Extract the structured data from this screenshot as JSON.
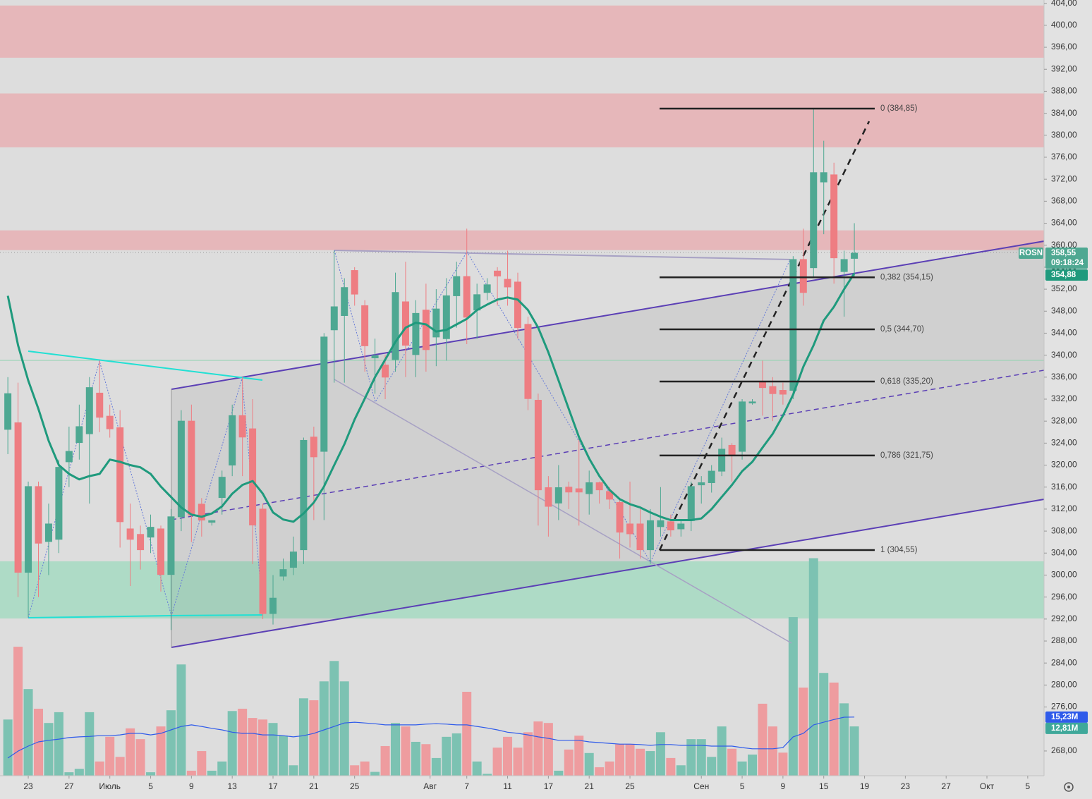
{
  "chart_data": {
    "type": "candlestick",
    "symbol": "ROSN",
    "countdown": "09:18:24",
    "xlim": [
      -0.77,
      101.6
    ],
    "ylim": [
      263.5,
      404.6
    ],
    "xticks": [
      {
        "value": 2,
        "label": "23"
      },
      {
        "value": 6,
        "label": "27"
      },
      {
        "value": 10,
        "label": "Июль"
      },
      {
        "value": 14,
        "label": "5"
      },
      {
        "value": 18,
        "label": "9"
      },
      {
        "value": 22,
        "label": "13"
      },
      {
        "value": 26,
        "label": "17"
      },
      {
        "value": 30,
        "label": "21"
      },
      {
        "value": 34,
        "label": "25"
      },
      {
        "value": 41.4,
        "label": "Авг"
      },
      {
        "value": 45,
        "label": "7"
      },
      {
        "value": 49,
        "label": "11"
      },
      {
        "value": 53,
        "label": "17"
      },
      {
        "value": 57,
        "label": "21"
      },
      {
        "value": 61,
        "label": "25"
      },
      {
        "value": 68,
        "label": "Сен"
      },
      {
        "value": 72,
        "label": "5"
      },
      {
        "value": 76,
        "label": "9"
      },
      {
        "value": 80,
        "label": "15"
      },
      {
        "value": 84,
        "label": "19"
      },
      {
        "value": 88,
        "label": "23"
      },
      {
        "value": 92,
        "label": "27"
      },
      {
        "value": 96,
        "label": "Окт"
      },
      {
        "value": 100,
        "label": "5"
      }
    ],
    "yticks": [
      {
        "value": 268,
        "label": "268,00"
      },
      {
        "value": 276,
        "label": "276,00"
      },
      {
        "value": 280,
        "label": "280,00"
      },
      {
        "value": 284,
        "label": "284,00"
      },
      {
        "value": 288,
        "label": "288,00"
      },
      {
        "value": 292,
        "label": "292,00"
      },
      {
        "value": 296,
        "label": "296,00"
      },
      {
        "value": 300,
        "label": "300,00"
      },
      {
        "value": 304,
        "label": "304,00"
      },
      {
        "value": 308,
        "label": "308,00"
      },
      {
        "value": 312,
        "label": "312,00"
      },
      {
        "value": 316,
        "label": "316,00"
      },
      {
        "value": 320,
        "label": "320,00"
      },
      {
        "value": 324,
        "label": "324,00"
      },
      {
        "value": 328,
        "label": "328,00"
      },
      {
        "value": 332,
        "label": "332,00"
      },
      {
        "value": 336,
        "label": "336,00"
      },
      {
        "value": 340,
        "label": "340,00"
      },
      {
        "value": 344,
        "label": "344,00"
      },
      {
        "value": 348,
        "label": "348,00"
      },
      {
        "value": 352,
        "label": "352,00"
      },
      {
        "value": 356,
        "label": "356,00"
      },
      {
        "value": 360,
        "label": "360,00"
      },
      {
        "value": 364,
        "label": "364,00"
      },
      {
        "value": 368,
        "label": "368,00"
      },
      {
        "value": 372,
        "label": "372,00"
      },
      {
        "value": 376,
        "label": "376,00"
      },
      {
        "value": 380,
        "label": "380,00"
      },
      {
        "value": 384,
        "label": "384,00"
      },
      {
        "value": 388,
        "label": "388,00"
      },
      {
        "value": 392,
        "label": "392,00"
      },
      {
        "value": 396,
        "label": "396,00"
      },
      {
        "value": 400,
        "label": "400,00"
      },
      {
        "value": 404,
        "label": "404,00"
      }
    ],
    "open": [
      326.5,
      327.7,
      300.5,
      316.1,
      306.1,
      306.5,
      320.6,
      324.1,
      325.7,
      333.1,
      328.9,
      326.8,
      308.4,
      307.4,
      306.9,
      308.4,
      300.1,
      310.6,
      328.0,
      312.9,
      309.6,
      314.1,
      320.0,
      329.0,
      326.6,
      312.0,
      293.0,
      299.8,
      301.4,
      304.6,
      325.1,
      322.5,
      344.6,
      347.2,
      355.4,
      349.0,
      339.5,
      338.2,
      339.2,
      349.7,
      340.1,
      348.2,
      343.3,
      343.0,
      350.8,
      354.3,
      348.2,
      351.4,
      355.3,
      353.8,
      353.3,
      345.6,
      331.8,
      315.9,
      313.1,
      316.0,
      315.7,
      314.8,
      316.8,
      315.2,
      313.2,
      309.3,
      309.3,
      304.6,
      308.8,
      309.7,
      308.4,
      309.9,
      316.4,
      316.8,
      318.9,
      323.6,
      322.5,
      331.3,
      335.1,
      334.3,
      333.6,
      333.6,
      357.4,
      355.9,
      371.5,
      372.8,
      355.2,
      357.6
    ],
    "high": [
      336,
      335,
      317,
      317,
      313,
      321,
      327,
      331,
      336,
      339,
      331,
      330,
      313,
      309,
      311,
      309,
      312,
      330,
      331,
      314,
      310,
      319,
      331,
      336,
      332,
      313,
      300,
      303,
      307,
      325,
      327,
      344,
      359,
      354,
      356,
      350,
      343,
      340,
      355,
      357,
      350,
      353,
      352,
      354,
      357,
      363,
      353,
      354,
      356,
      359,
      355,
      347,
      333,
      318,
      320,
      317,
      325,
      319,
      317,
      316,
      314,
      317,
      312,
      312,
      316,
      311,
      310,
      317,
      318,
      320,
      325,
      324,
      332,
      332,
      339,
      336,
      335,
      358,
      363,
      384.85,
      379,
      375,
      359,
      364
    ],
    "low": [
      322,
      296,
      292.4,
      296,
      300,
      304,
      316,
      321,
      313,
      326,
      325,
      305,
      298,
      301,
      304,
      297,
      290,
      308,
      306,
      307,
      309,
      311,
      318,
      318,
      302,
      292,
      291,
      299,
      300,
      302,
      310,
      310,
      335,
      335,
      349,
      337,
      333,
      332,
      337,
      336,
      336,
      337,
      338,
      339,
      345,
      342,
      343,
      350,
      349,
      349,
      343,
      330,
      309,
      307,
      310,
      312,
      309,
      311,
      313,
      312,
      303,
      305,
      303,
      302,
      307,
      307,
      307,
      308,
      313,
      315,
      318,
      317,
      321,
      331,
      329,
      328,
      331,
      332,
      349,
      354,
      362,
      353,
      347,
      354
    ],
    "close": [
      333.0,
      300.5,
      316.1,
      305.8,
      309.3,
      319.6,
      322.5,
      327.0,
      334.1,
      328.7,
      326.6,
      309.7,
      306.5,
      304.6,
      308.7,
      300.1,
      310.6,
      328.0,
      310.9,
      310.0,
      309.9,
      317.8,
      329.0,
      325.1,
      309.1,
      293.0,
      295.8,
      301.0,
      304.2,
      324.5,
      321.5,
      343.3,
      348.8,
      352.3,
      351.1,
      341.7,
      339.9,
      336.0,
      351.4,
      341.8,
      347.6,
      341.0,
      348.4,
      350.8,
      354.3,
      346.9,
      351.0,
      352.8,
      354.4,
      352.4,
      345.0,
      332.1,
      315.5,
      312.5,
      315.9,
      315.1,
      315.1,
      316.8,
      315.5,
      313.8,
      307.8,
      307.5,
      304.6,
      309.9,
      309.9,
      308.2,
      309.3,
      316.1,
      316.8,
      318.9,
      322.9,
      321.9,
      331.5,
      331.5,
      334.1,
      333.0,
      332.9,
      357.4,
      351.4,
      373.2,
      373.2,
      357.7,
      357.4,
      358.55
    ],
    "volume": [
      14.6,
      33.5,
      22.5,
      17.4,
      13.7,
      16.5,
      0.9,
      1.8,
      16.5,
      3.7,
      10.1,
      4.9,
      12.3,
      9.5,
      0.9,
      12.8,
      17.0,
      28.9,
      1.3,
      6.4,
      1.3,
      3.7,
      16.8,
      17.4,
      15.0,
      14.6,
      13.7,
      10.4,
      2.7,
      20.1,
      19.6,
      24.5,
      29.8,
      24.5,
      2.7,
      3.7,
      1.0,
      7.7,
      13.7,
      12.8,
      8.8,
      8.2,
      4.6,
      10.1,
      11.0,
      21.8,
      3.7,
      0.5,
      7.3,
      10.1,
      7.3,
      11.3,
      14.1,
      13.7,
      1.3,
      6.8,
      10.4,
      5.9,
      2.2,
      3.7,
      8.2,
      8.2,
      7.0,
      6.4,
      11.3,
      4.6,
      2.7,
      9.5,
      9.5,
      4.9,
      12.8,
      7.0,
      3.7,
      5.5,
      18.7,
      12.8,
      6.0,
      41.2,
      22.9,
      56.5,
      26.7,
      24.2,
      18.8,
      12.81
    ],
    "ma": [
      350.8,
      341.8,
      335.4,
      330.2,
      324.4,
      320.0,
      318.4,
      317.4,
      318.0,
      318.4,
      321.0,
      320.6,
      320.0,
      319.6,
      318.4,
      316.1,
      314.2,
      312.3,
      311.0,
      310.6,
      311.2,
      312.5,
      314.8,
      316.4,
      317.1,
      314.8,
      311.4,
      310.1,
      309.7,
      311.2,
      313.2,
      316.1,
      320.0,
      323.8,
      328.3,
      332.1,
      336.0,
      339.2,
      342.4,
      345.0,
      345.9,
      345.6,
      344.3,
      344.6,
      345.6,
      346.6,
      348.2,
      349.2,
      350.1,
      350.5,
      350.1,
      348.2,
      345.0,
      340.5,
      335.4,
      330.2,
      325.1,
      321.2,
      318.0,
      315.5,
      313.8,
      312.9,
      312.3,
      311.4,
      310.6,
      310.0,
      310.0,
      310.0,
      310.3,
      312.0,
      314.2,
      316.4,
      318.9,
      320.6,
      323.2,
      325.7,
      329.0,
      332.8,
      337.9,
      341.8,
      346.3,
      348.8,
      352.0,
      354.88
    ],
    "volume_ma": [
      4.6,
      6.4,
      7.7,
      8.8,
      9.2,
      9.5,
      9.9,
      10.1,
      10.2,
      10.4,
      10.4,
      10.6,
      11.0,
      11.0,
      10.6,
      11.0,
      11.9,
      12.8,
      13.2,
      12.8,
      12.3,
      11.9,
      11.3,
      11.0,
      11.0,
      10.6,
      10.6,
      10.4,
      10.1,
      10.4,
      11.0,
      11.9,
      12.8,
      13.7,
      13.9,
      13.7,
      13.5,
      13.2,
      13.2,
      13.2,
      13.2,
      13.4,
      13.5,
      13.4,
      13.2,
      13.2,
      12.8,
      12.4,
      11.9,
      11.3,
      11.0,
      10.6,
      10.1,
      9.7,
      9.2,
      9.2,
      9.2,
      8.8,
      8.6,
      8.4,
      8.2,
      8.2,
      8.1,
      7.9,
      8.1,
      8.1,
      7.9,
      7.9,
      7.9,
      7.7,
      7.7,
      7.7,
      7.3,
      7.0,
      7.0,
      7.0,
      7.3,
      10.1,
      11.0,
      13.2,
      13.9,
      14.6,
      15.2,
      15.23
    ],
    "up_color": "#4ea892",
    "down_color": "#ee7d82",
    "volume_up_color": "#7cc2b2",
    "volume_down_color": "#ee9c9f",
    "ma_color": "#1f9a7d",
    "volume_ma_color": "#2f5bea",
    "fib_levels": [
      {
        "value": 384.85,
        "label": "0 (384,85)"
      },
      {
        "value": 354.15,
        "label": "0,382 (354,15)"
      },
      {
        "value": 344.7,
        "label": "0,5 (344,70)"
      },
      {
        "value": 335.2,
        "label": "0,618 (335,20)"
      },
      {
        "value": 321.75,
        "label": "0,786 (321,75)"
      },
      {
        "value": 304.55,
        "label": "1 (304,55)"
      }
    ],
    "zones": [
      {
        "range": [
          394.1,
          403.6
        ],
        "color": "#e8b0b4"
      },
      {
        "range": [
          377.8,
          387.6
        ],
        "color": "#e8b0b4"
      },
      {
        "range": [
          359.1,
          362.7
        ],
        "color": "#e8b0b4"
      },
      {
        "range": [
          292.1,
          302.5
        ],
        "color": "#a6dbc2"
      }
    ],
    "price_labels": [
      {
        "value": 358.55,
        "label": "358,55"
      },
      {
        "value": 354.88,
        "label": "354,88"
      }
    ],
    "volume_labels": [
      {
        "value": 15.23,
        "label": "15,23M",
        "color": "#2f5bea"
      },
      {
        "value": 12.81,
        "label": "12,81M",
        "color": "#3fa89a"
      }
    ]
  }
}
